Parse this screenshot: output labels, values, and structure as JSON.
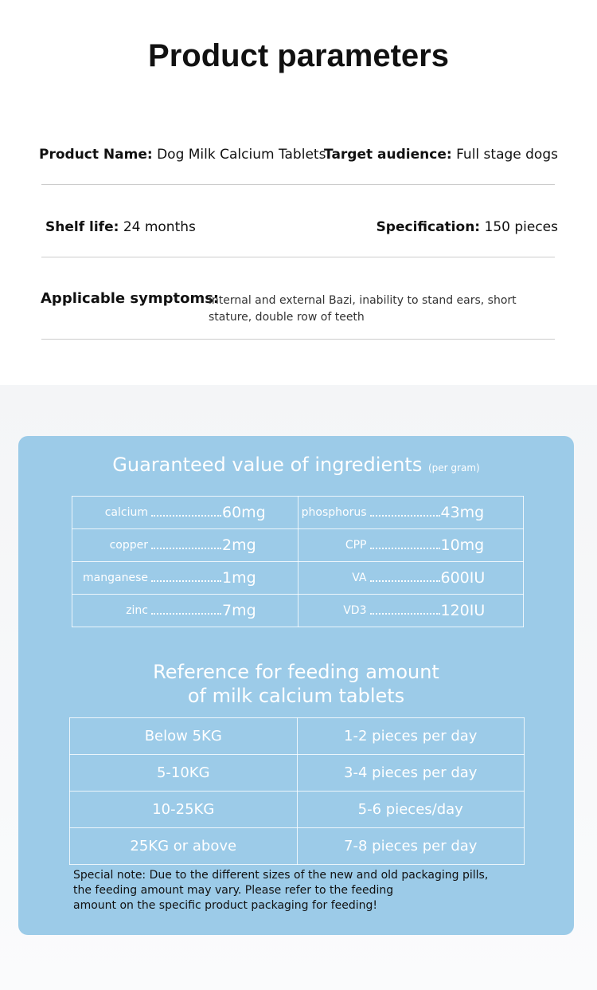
{
  "header": {
    "title": "Product parameters"
  },
  "parameters": [
    {
      "label": "Product Name:",
      "value": "Dog Milk Calcium Tablets"
    },
    {
      "label": "Target audience:",
      "value": "Full stage dogs"
    },
    {
      "label": "Shelf life:",
      "value": "24 months"
    },
    {
      "label": "Specification:",
      "value": "150 pieces"
    },
    {
      "label": "Applicable symptoms:",
      "value": "internal and external Bazi, inability to stand ears, short stature, double row of teeth"
    }
  ],
  "ingredients": {
    "title": "Guaranteed value of ingredients",
    "unit_note": "(per gram)",
    "rows": [
      [
        {
          "name": "calcium",
          "amount": "60mg"
        },
        {
          "name": "phosphorus",
          "amount": "43mg"
        }
      ],
      [
        {
          "name": "copper",
          "amount": "2mg"
        },
        {
          "name": "CPP",
          "amount": "10mg"
        }
      ],
      [
        {
          "name": "manganese",
          "amount": "1mg"
        },
        {
          "name": "VA",
          "amount": "600IU"
        }
      ],
      [
        {
          "name": "zinc",
          "amount": "7mg"
        },
        {
          "name": "VD3",
          "amount": "120IU"
        }
      ]
    ]
  },
  "feeding": {
    "title": [
      "Reference for feeding amount",
      "of milk calcium tablets"
    ],
    "rows": [
      [
        "Below 5KG",
        "1-2 pieces per day"
      ],
      [
        "5-10KG",
        "3-4 pieces per day"
      ],
      [
        "10-25KG",
        "5-6 pieces/day"
      ],
      [
        "25KG or above",
        "7-8 pieces per day"
      ]
    ]
  },
  "note": [
    "Special note: Due to the different sizes of the new and old packaging pills,",
    "the feeding amount may vary. Please refer to the feeding",
    "amount on the specific product packaging for feeding!"
  ]
}
